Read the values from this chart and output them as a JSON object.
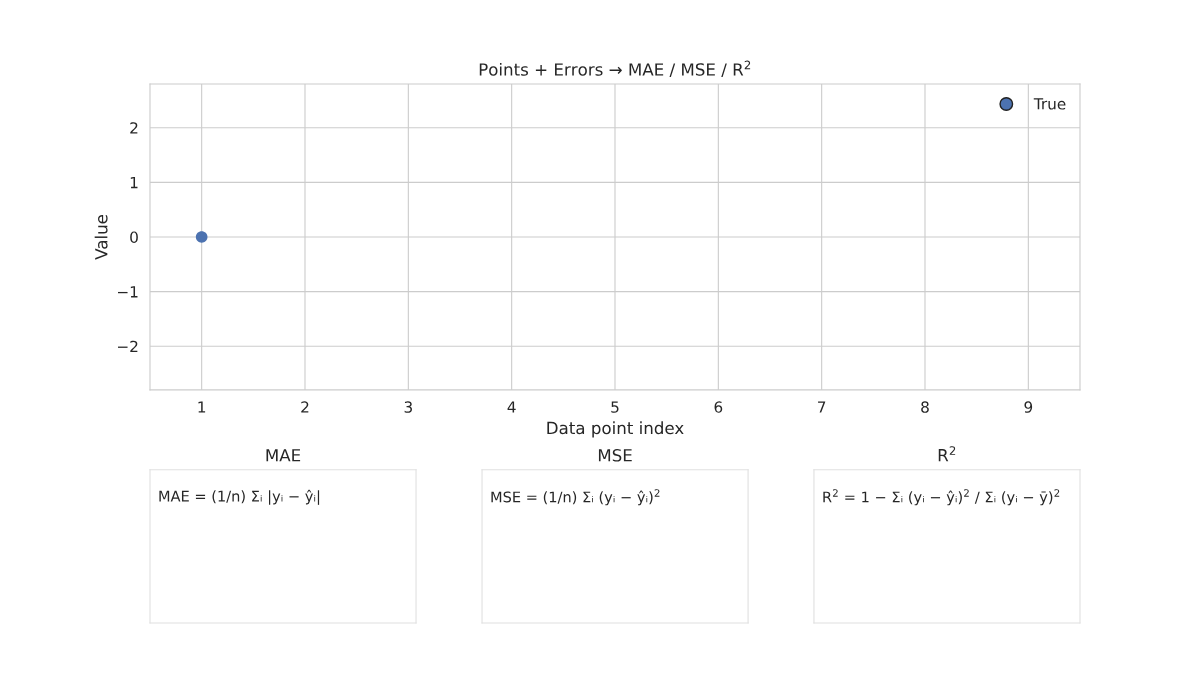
{
  "chart_data": [
    {
      "type": "scatter",
      "title": "Points + Errors → MAE / MSE / R$^{2}$",
      "xlabel": "Data point index",
      "ylabel": "Value",
      "x": [
        1
      ],
      "series": [
        {
          "name": "True",
          "color": "#4c72b0",
          "values": [
            0
          ]
        }
      ],
      "xlim": [
        0.5,
        9.5
      ],
      "xticks": [
        1,
        2,
        3,
        4,
        5,
        6,
        7,
        8,
        9
      ],
      "ylim": [
        -2.8,
        2.8
      ],
      "yticks": [
        {
          "value": -2,
          "label": "−2"
        },
        {
          "value": -1,
          "label": "−1"
        },
        0,
        1,
        2
      ],
      "grid": true,
      "legend": "top right",
      "marker": "circle"
    },
    {
      "type": "other",
      "title": "MAE",
      "annotations": [
        "MAE = (1/n) Σᵢ |yᵢ − ŷᵢ|"
      ]
    },
    {
      "type": "other",
      "title": "MSE",
      "annotations": [
        "MSE = (1/n) Σᵢ (yᵢ − ŷᵢ)$^{2}$"
      ]
    },
    {
      "type": "other",
      "title": "R$^{2}$",
      "annotations": [
        "R$^{2}$ = 1 − Σᵢ (yᵢ − ŷᵢ)$^{2}$ / Σᵢ (yᵢ − ȳ)$^{2}$"
      ]
    }
  ]
}
